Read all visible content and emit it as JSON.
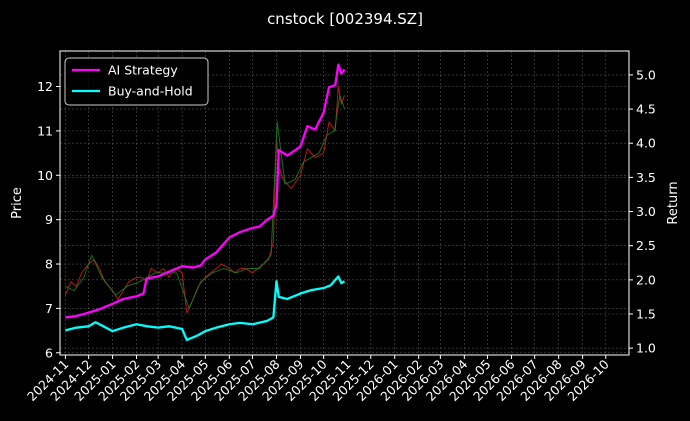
{
  "chart_data": {
    "type": "line",
    "title": "cnstock [002394.SZ]",
    "ylabel_left": "Price",
    "ylabel_right": "Return",
    "ylim_left": [
      5.95,
      12.8
    ],
    "ylim_right": [
      0.9,
      5.35
    ],
    "y_ticks_left": [
      "6",
      "7",
      "8",
      "9",
      "10",
      "11",
      "12"
    ],
    "y_ticks_right": [
      "1.0",
      "1.5",
      "2.0",
      "2.5",
      "3.0",
      "3.5",
      "4.0",
      "4.5",
      "5.0"
    ],
    "x_ticks": [
      "2024-11",
      "2024-12",
      "2025-01",
      "2025-02",
      "2025-03",
      "2025-04",
      "2025-05",
      "2025-06",
      "2025-07",
      "2025-08",
      "2025-09",
      "2025-10",
      "2025-11",
      "2025-12",
      "2026-01",
      "2026-02",
      "2026-03",
      "2026-04",
      "2026-05",
      "2026-06",
      "2026-07",
      "2026-08",
      "2026-09",
      "2026-10"
    ],
    "x_range": [
      "2024-10-25",
      "2026-10-31"
    ],
    "grid": true,
    "legend_position": "top-left",
    "series": [
      {
        "name": "AI Strategy",
        "color": "#ff00ff",
        "axis": "right",
        "points": [
          [
            "2024-11-01",
            1.45
          ],
          [
            "2024-11-15",
            1.47
          ],
          [
            "2024-12-01",
            1.52
          ],
          [
            "2024-12-15",
            1.57
          ],
          [
            "2025-01-01",
            1.65
          ],
          [
            "2025-01-15",
            1.72
          ],
          [
            "2025-02-01",
            1.76
          ],
          [
            "2025-02-10",
            1.8
          ],
          [
            "2025-02-14",
            2.02
          ],
          [
            "2025-03-01",
            2.05
          ],
          [
            "2025-03-15",
            2.12
          ],
          [
            "2025-04-01",
            2.2
          ],
          [
            "2025-04-15",
            2.18
          ],
          [
            "2025-04-25",
            2.21
          ],
          [
            "2025-05-01",
            2.3
          ],
          [
            "2025-05-15",
            2.4
          ],
          [
            "2025-06-01",
            2.62
          ],
          [
            "2025-06-15",
            2.7
          ],
          [
            "2025-07-01",
            2.76
          ],
          [
            "2025-07-10",
            2.78
          ],
          [
            "2025-07-20",
            2.88
          ],
          [
            "2025-07-28",
            2.94
          ],
          [
            "2025-08-01",
            3.1
          ],
          [
            "2025-08-04",
            3.9
          ],
          [
            "2025-08-15",
            3.82
          ],
          [
            "2025-09-01",
            3.95
          ],
          [
            "2025-09-10",
            4.25
          ],
          [
            "2025-09-20",
            4.2
          ],
          [
            "2025-10-01",
            4.45
          ],
          [
            "2025-10-08",
            4.82
          ],
          [
            "2025-10-16",
            4.85
          ],
          [
            "2025-10-20",
            5.15
          ],
          [
            "2025-10-24",
            5.02
          ],
          [
            "2025-10-28",
            5.08
          ]
        ]
      },
      {
        "name": "Buy-and-Hold",
        "color": "#00ffff",
        "axis": "right",
        "points": [
          [
            "2024-11-01",
            1.26
          ],
          [
            "2024-11-15",
            1.3
          ],
          [
            "2024-12-01",
            1.32
          ],
          [
            "2024-12-10",
            1.38
          ],
          [
            "2024-12-20",
            1.32
          ],
          [
            "2025-01-01",
            1.25
          ],
          [
            "2025-01-15",
            1.3
          ],
          [
            "2025-02-01",
            1.35
          ],
          [
            "2025-02-15",
            1.32
          ],
          [
            "2025-03-01",
            1.3
          ],
          [
            "2025-03-15",
            1.32
          ],
          [
            "2025-04-01",
            1.28
          ],
          [
            "2025-04-07",
            1.12
          ],
          [
            "2025-04-20",
            1.18
          ],
          [
            "2025-05-01",
            1.25
          ],
          [
            "2025-05-15",
            1.3
          ],
          [
            "2025-06-01",
            1.35
          ],
          [
            "2025-06-15",
            1.37
          ],
          [
            "2025-07-01",
            1.35
          ],
          [
            "2025-07-20",
            1.4
          ],
          [
            "2025-07-28",
            1.45
          ],
          [
            "2025-08-01",
            1.98
          ],
          [
            "2025-08-04",
            1.75
          ],
          [
            "2025-08-15",
            1.72
          ],
          [
            "2025-09-01",
            1.8
          ],
          [
            "2025-09-15",
            1.85
          ],
          [
            "2025-10-01",
            1.88
          ],
          [
            "2025-10-10",
            1.92
          ],
          [
            "2025-10-20",
            2.05
          ],
          [
            "2025-10-24",
            1.95
          ],
          [
            "2025-10-28",
            1.98
          ]
        ]
      },
      {
        "name": "",
        "color": "#d02020",
        "axis": "left",
        "style": "price-up",
        "points": [
          [
            "2024-11-01",
            7.3
          ],
          [
            "2024-11-08",
            7.6
          ],
          [
            "2024-11-15",
            7.5
          ],
          [
            "2024-11-22",
            7.8
          ],
          [
            "2024-12-01",
            8.0
          ],
          [
            "2024-12-08",
            8.1
          ],
          [
            "2024-12-15",
            7.9
          ],
          [
            "2024-12-22",
            7.6
          ],
          [
            "2025-01-01",
            7.4
          ],
          [
            "2025-01-08",
            7.2
          ],
          [
            "2025-01-15",
            7.4
          ],
          [
            "2025-01-22",
            7.6
          ],
          [
            "2025-02-01",
            7.7
          ],
          [
            "2025-02-08",
            7.7
          ],
          [
            "2025-02-14",
            7.6
          ],
          [
            "2025-02-20",
            7.9
          ],
          [
            "2025-03-01",
            7.8
          ],
          [
            "2025-03-08",
            7.9
          ],
          [
            "2025-03-15",
            7.7
          ],
          [
            "2025-03-22",
            7.9
          ],
          [
            "2025-04-01",
            7.8
          ],
          [
            "2025-04-07",
            6.9
          ],
          [
            "2025-04-15",
            7.2
          ],
          [
            "2025-04-22",
            7.5
          ],
          [
            "2025-05-01",
            7.7
          ],
          [
            "2025-05-08",
            7.8
          ],
          [
            "2025-05-15",
            7.9
          ],
          [
            "2025-05-22",
            8.0
          ],
          [
            "2025-06-01",
            7.9
          ],
          [
            "2025-06-08",
            7.8
          ],
          [
            "2025-06-15",
            7.9
          ],
          [
            "2025-06-22",
            7.9
          ],
          [
            "2025-07-01",
            7.8
          ],
          [
            "2025-07-08",
            7.9
          ],
          [
            "2025-07-15",
            8.0
          ],
          [
            "2025-07-22",
            8.1
          ],
          [
            "2025-07-28",
            8.5
          ],
          [
            "2025-08-01",
            10.8
          ],
          [
            "2025-08-04",
            10.2
          ],
          [
            "2025-08-10",
            9.9
          ],
          [
            "2025-08-20",
            9.7
          ],
          [
            "2025-09-01",
            10.0
          ],
          [
            "2025-09-10",
            10.6
          ],
          [
            "2025-09-20",
            10.4
          ],
          [
            "2025-10-01",
            10.5
          ],
          [
            "2025-10-08",
            11.2
          ],
          [
            "2025-10-16",
            11.0
          ],
          [
            "2025-10-20",
            12.0
          ],
          [
            "2025-10-24",
            11.6
          ],
          [
            "2025-10-28",
            11.8
          ]
        ]
      },
      {
        "name": "",
        "color": "#208020",
        "axis": "left",
        "style": "price-down",
        "points": [
          [
            "2024-11-01",
            7.5
          ],
          [
            "2024-11-12",
            7.4
          ],
          [
            "2024-11-25",
            7.7
          ],
          [
            "2024-12-05",
            8.2
          ],
          [
            "2024-12-18",
            7.7
          ],
          [
            "2025-01-05",
            7.3
          ],
          [
            "2025-01-20",
            7.5
          ],
          [
            "2025-02-05",
            7.6
          ],
          [
            "2025-02-25",
            7.8
          ],
          [
            "2025-03-10",
            7.8
          ],
          [
            "2025-03-25",
            7.8
          ],
          [
            "2025-04-10",
            7.0
          ],
          [
            "2025-04-25",
            7.6
          ],
          [
            "2025-05-10",
            7.8
          ],
          [
            "2025-05-25",
            7.9
          ],
          [
            "2025-06-10",
            7.8
          ],
          [
            "2025-06-25",
            7.9
          ],
          [
            "2025-07-10",
            7.9
          ],
          [
            "2025-07-25",
            8.2
          ],
          [
            "2025-08-02",
            11.2
          ],
          [
            "2025-08-12",
            9.8
          ],
          [
            "2025-08-25",
            9.9
          ],
          [
            "2025-09-05",
            10.3
          ],
          [
            "2025-09-25",
            10.5
          ],
          [
            "2025-10-05",
            10.9
          ],
          [
            "2025-10-15",
            11.0
          ],
          [
            "2025-10-22",
            11.8
          ],
          [
            "2025-10-28",
            11.5
          ]
        ]
      }
    ]
  }
}
